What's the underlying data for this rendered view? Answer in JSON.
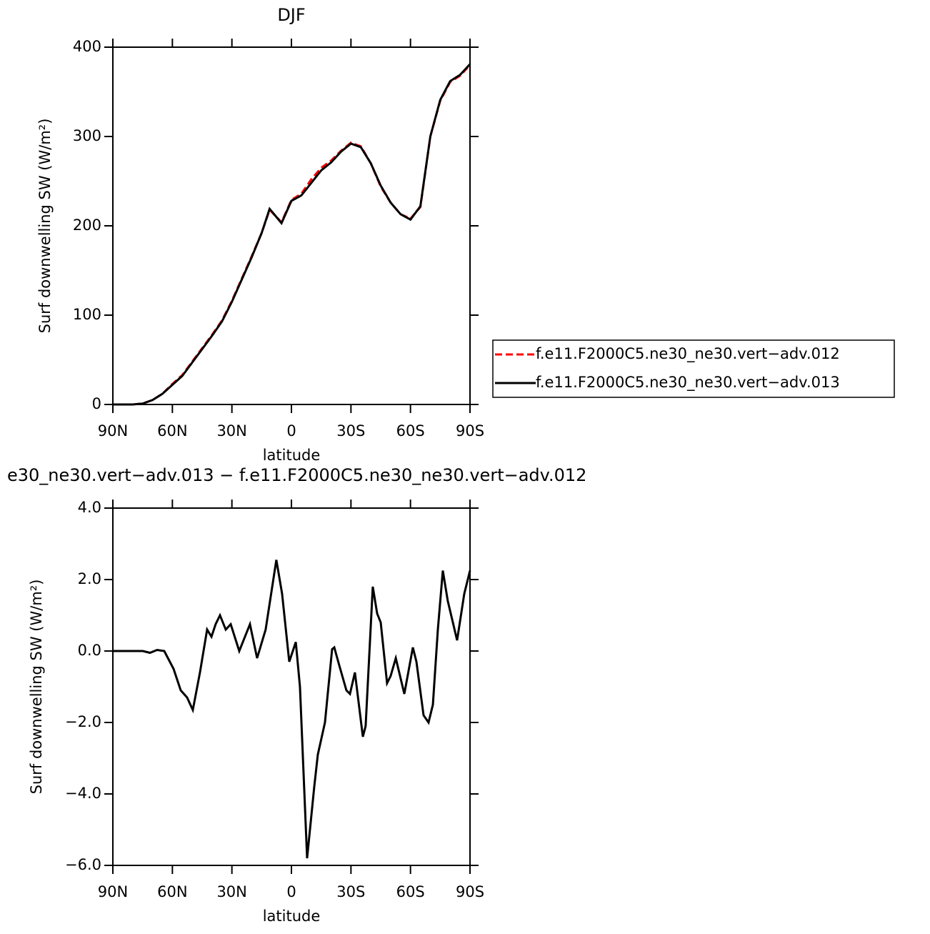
{
  "chart_data": [
    {
      "type": "line",
      "title": "DJF",
      "xlabel": "latitude",
      "ylabel": "Surf downwelling SW (W/m²)",
      "xlim": [
        90,
        -90
      ],
      "xticks": [
        {
          "value": 90,
          "label": "90N"
        },
        {
          "value": 60,
          "label": "60N"
        },
        {
          "value": 30,
          "label": "30N"
        },
        0,
        {
          "value": -30,
          "label": "30S"
        },
        {
          "value": -60,
          "label": "60S"
        },
        {
          "value": -90,
          "label": "90S"
        }
      ],
      "ylim": [
        0,
        400
      ],
      "yticks": [
        0,
        100,
        200,
        300,
        400
      ],
      "legend": "right",
      "x": [
        90,
        80,
        75,
        70,
        65,
        60,
        55,
        50,
        45,
        40,
        35,
        30,
        25,
        20,
        15,
        11,
        5,
        0,
        -5,
        -10,
        -15,
        -20,
        -25,
        -30,
        -35,
        -40,
        -45,
        -50,
        -55,
        -60,
        -65,
        -70,
        -75,
        -80,
        -85,
        -90
      ],
      "series": [
        {
          "name": "f.e11.F2000C5.ne30_ne30.vert−adv.012",
          "color": "#ff0000",
          "dash": true,
          "values": [
            0,
            0,
            1,
            5,
            12,
            23,
            33,
            48,
            63,
            78,
            94,
            116,
            141,
            166,
            192,
            218,
            204,
            229,
            236,
            252,
            265,
            273,
            284,
            293,
            289,
            270,
            244,
            226,
            213,
            208,
            221,
            300,
            340,
            361,
            368,
            380
          ]
        },
        {
          "name": "f.e11.F2000C5.ne30_ne30.vert−adv.013",
          "color": "#000000",
          "dash": false,
          "values": [
            0,
            0,
            1,
            5,
            12,
            22,
            32,
            47,
            62,
            77,
            93,
            115,
            140,
            165,
            192,
            219,
            203,
            228,
            234,
            248,
            262,
            271,
            283,
            292,
            288,
            270,
            245,
            226,
            213,
            207,
            222,
            300,
            341,
            362,
            369,
            381
          ]
        }
      ]
    },
    {
      "type": "line",
      "title": "e30_ne30.vert−adv.013 − f.e11.F2000C5.ne30_ne30.vert−adv.012",
      "xlabel": "latitude",
      "ylabel": "Surf downwelling SW (W/m²)",
      "xlim": [
        90,
        -90
      ],
      "xticks": [
        {
          "value": 90,
          "label": "90N"
        },
        {
          "value": 60,
          "label": "60N"
        },
        {
          "value": 30,
          "label": "30N"
        },
        0,
        {
          "value": -30,
          "label": "30S"
        },
        {
          "value": -60,
          "label": "60S"
        },
        {
          "value": -90,
          "label": "90S"
        }
      ],
      "ylim": [
        -6,
        4
      ],
      "yticks": [
        {
          "value": -6,
          "label": "−6.0"
        },
        {
          "value": -4,
          "label": "−4.0"
        },
        {
          "value": -2,
          "label": "−2.0"
        },
        {
          "value": 0,
          "label": "0.0"
        },
        {
          "value": 2,
          "label": "2.0"
        },
        {
          "value": 4,
          "label": "4.0"
        }
      ],
      "x": [
        90,
        74.9,
        71.3,
        67.7,
        64.1,
        59.4,
        55.8,
        52.6,
        49.7,
        46.1,
        42.5,
        40.3,
        38.2,
        36.0,
        33.1,
        30.6,
        26.3,
        22.7,
        20.9,
        17.3,
        13.0,
        7.6,
        4.7,
        1.1,
        -2.2,
        -4.3,
        -7.9,
        -11.5,
        -13.3,
        -16.9,
        -20.5,
        -21.6,
        -24.1,
        -27.7,
        -29.5,
        -32.0,
        -36.0,
        -37.4,
        -41.0,
        -43.2,
        -45.0,
        -48.2,
        -50.0,
        -52.6,
        -56.9,
        -61.2,
        -63.0,
        -66.6,
        -69.1,
        -71.3,
        -73.8,
        -76.3,
        -78.8,
        -83.5,
        -87.1,
        -90
      ],
      "series": [
        {
          "color": "#000000",
          "dash": false,
          "values": [
            0,
            0,
            -0.05,
            0.03,
            0,
            -0.5,
            -1.1,
            -1.3,
            -1.65,
            -0.6,
            0.6,
            0.4,
            0.75,
            1.0,
            0.6,
            0.75,
            0,
            0.5,
            0.75,
            -0.2,
            0.6,
            2.55,
            1.6,
            -0.3,
            0.25,
            -1.0,
            -5.8,
            -3.8,
            -2.9,
            -2.0,
            0.05,
            0.1,
            -0.4,
            -1.1,
            -1.2,
            -0.6,
            -2.4,
            -2.1,
            1.8,
            1.05,
            0.8,
            -0.9,
            -0.7,
            -0.2,
            -1.2,
            0.1,
            -0.3,
            -1.8,
            -2.0,
            -1.5,
            0.6,
            2.25,
            1.4,
            0.3,
            1.6,
            2.25
          ]
        }
      ]
    }
  ]
}
